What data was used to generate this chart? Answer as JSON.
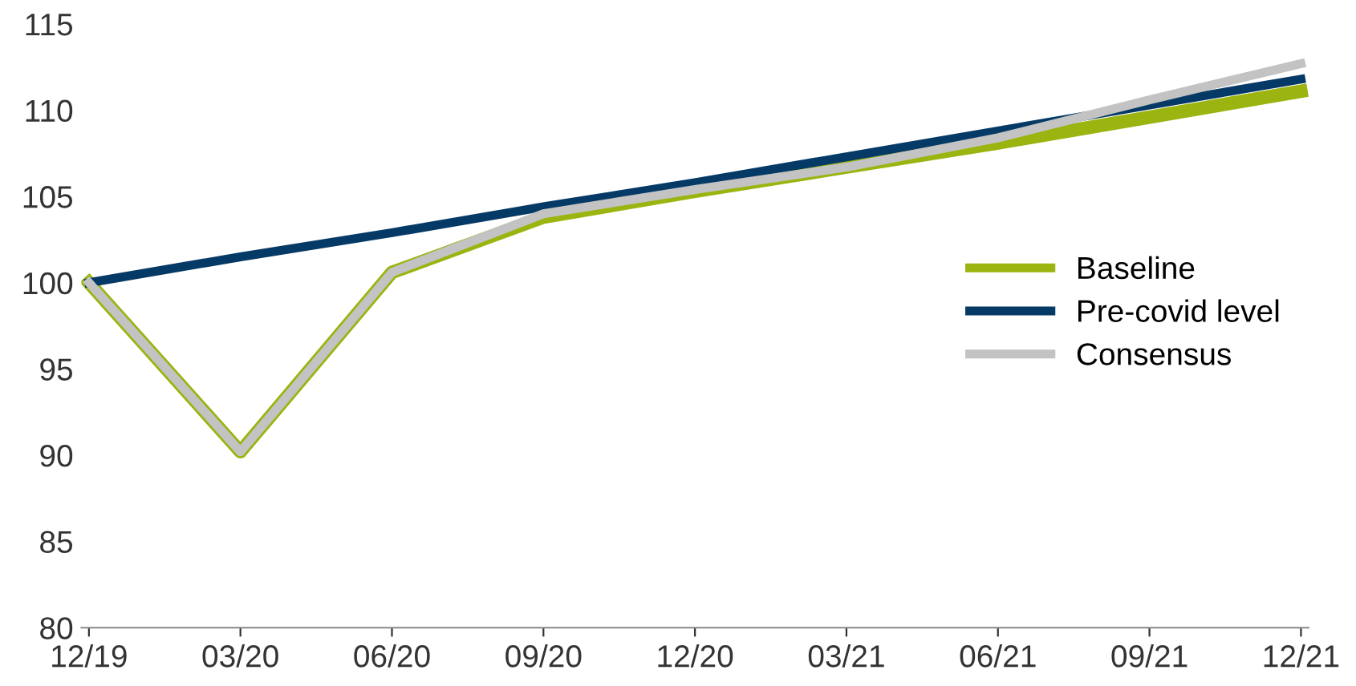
{
  "chart_data": {
    "type": "line",
    "categories": [
      "12/19",
      "03/20",
      "06/20",
      "09/20",
      "12/20",
      "03/21",
      "06/21",
      "09/21",
      "12/21"
    ],
    "series": [
      {
        "name": "Baseline",
        "color": "#9bb40f",
        "values": [
          100,
          90.2,
          100.6,
          103.8,
          105.3,
          106.7,
          108.1,
          109.6,
          111.1
        ]
      },
      {
        "name": "Pre-covid level",
        "color": "#063a66",
        "values": [
          100,
          101.5,
          102.9,
          104.4,
          105.8,
          107.3,
          108.8,
          110.3,
          111.8
        ]
      },
      {
        "name": "Consensus",
        "color": "#c3c3c3",
        "values": [
          100,
          90.2,
          100.6,
          104.0,
          105.4,
          106.7,
          108.4,
          110.6,
          112.7
        ]
      }
    ],
    "ylim": [
      80,
      115
    ],
    "yticks": [
      80,
      85,
      90,
      95,
      100,
      105,
      110,
      115
    ],
    "grid": false,
    "legend": "right",
    "marker": "none",
    "line_style": "solid"
  }
}
